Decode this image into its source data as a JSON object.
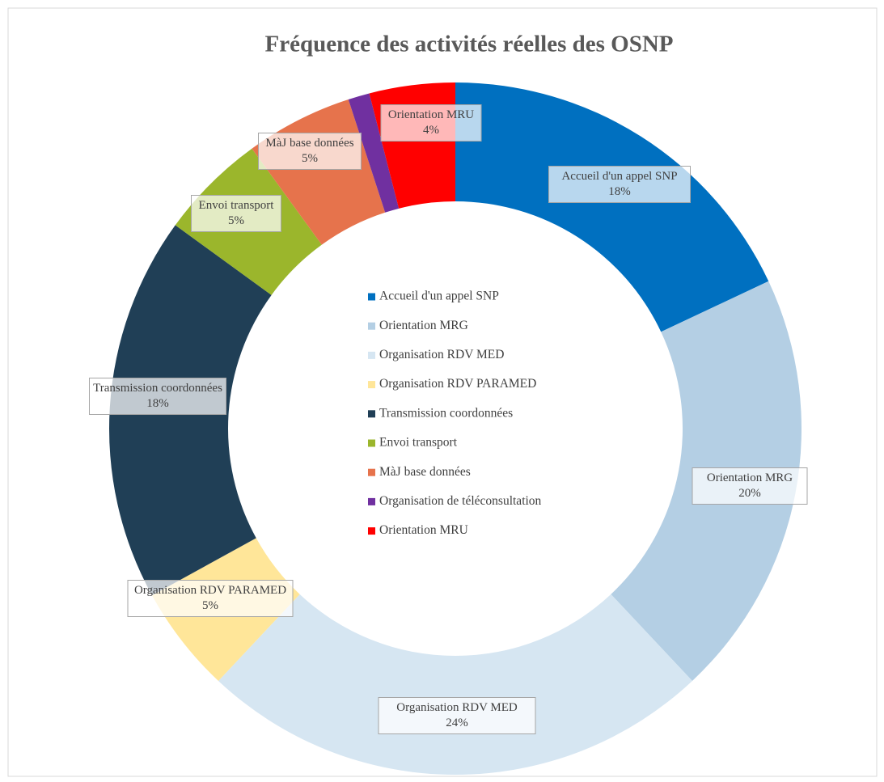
{
  "chart_data": {
    "type": "donut",
    "title": "Fréquence des activités réelles des OSNP",
    "categories": [
      "Accueil d'un appel SNP",
      "Orientation MRG",
      "Organisation RDV MED",
      "Organisation RDV PARAMED",
      "Transmission coordonnées",
      "Envoi transport",
      "MàJ base données",
      "Organisation de téléconsultation",
      "Orientation MRU"
    ],
    "values": [
      18,
      20,
      24,
      5,
      18,
      5,
      5,
      1,
      4
    ],
    "value_labels": [
      "18%",
      "20%",
      "24%",
      "5%",
      "18%",
      "5%",
      "5%",
      null,
      "4%"
    ],
    "colors": [
      "#0070c0",
      "#b4cfe4",
      "#d6e6f2",
      "#ffe699",
      "#203f56",
      "#9bb62c",
      "#e6734c",
      "#7030a0",
      "#ff0000"
    ],
    "legend": "center"
  }
}
